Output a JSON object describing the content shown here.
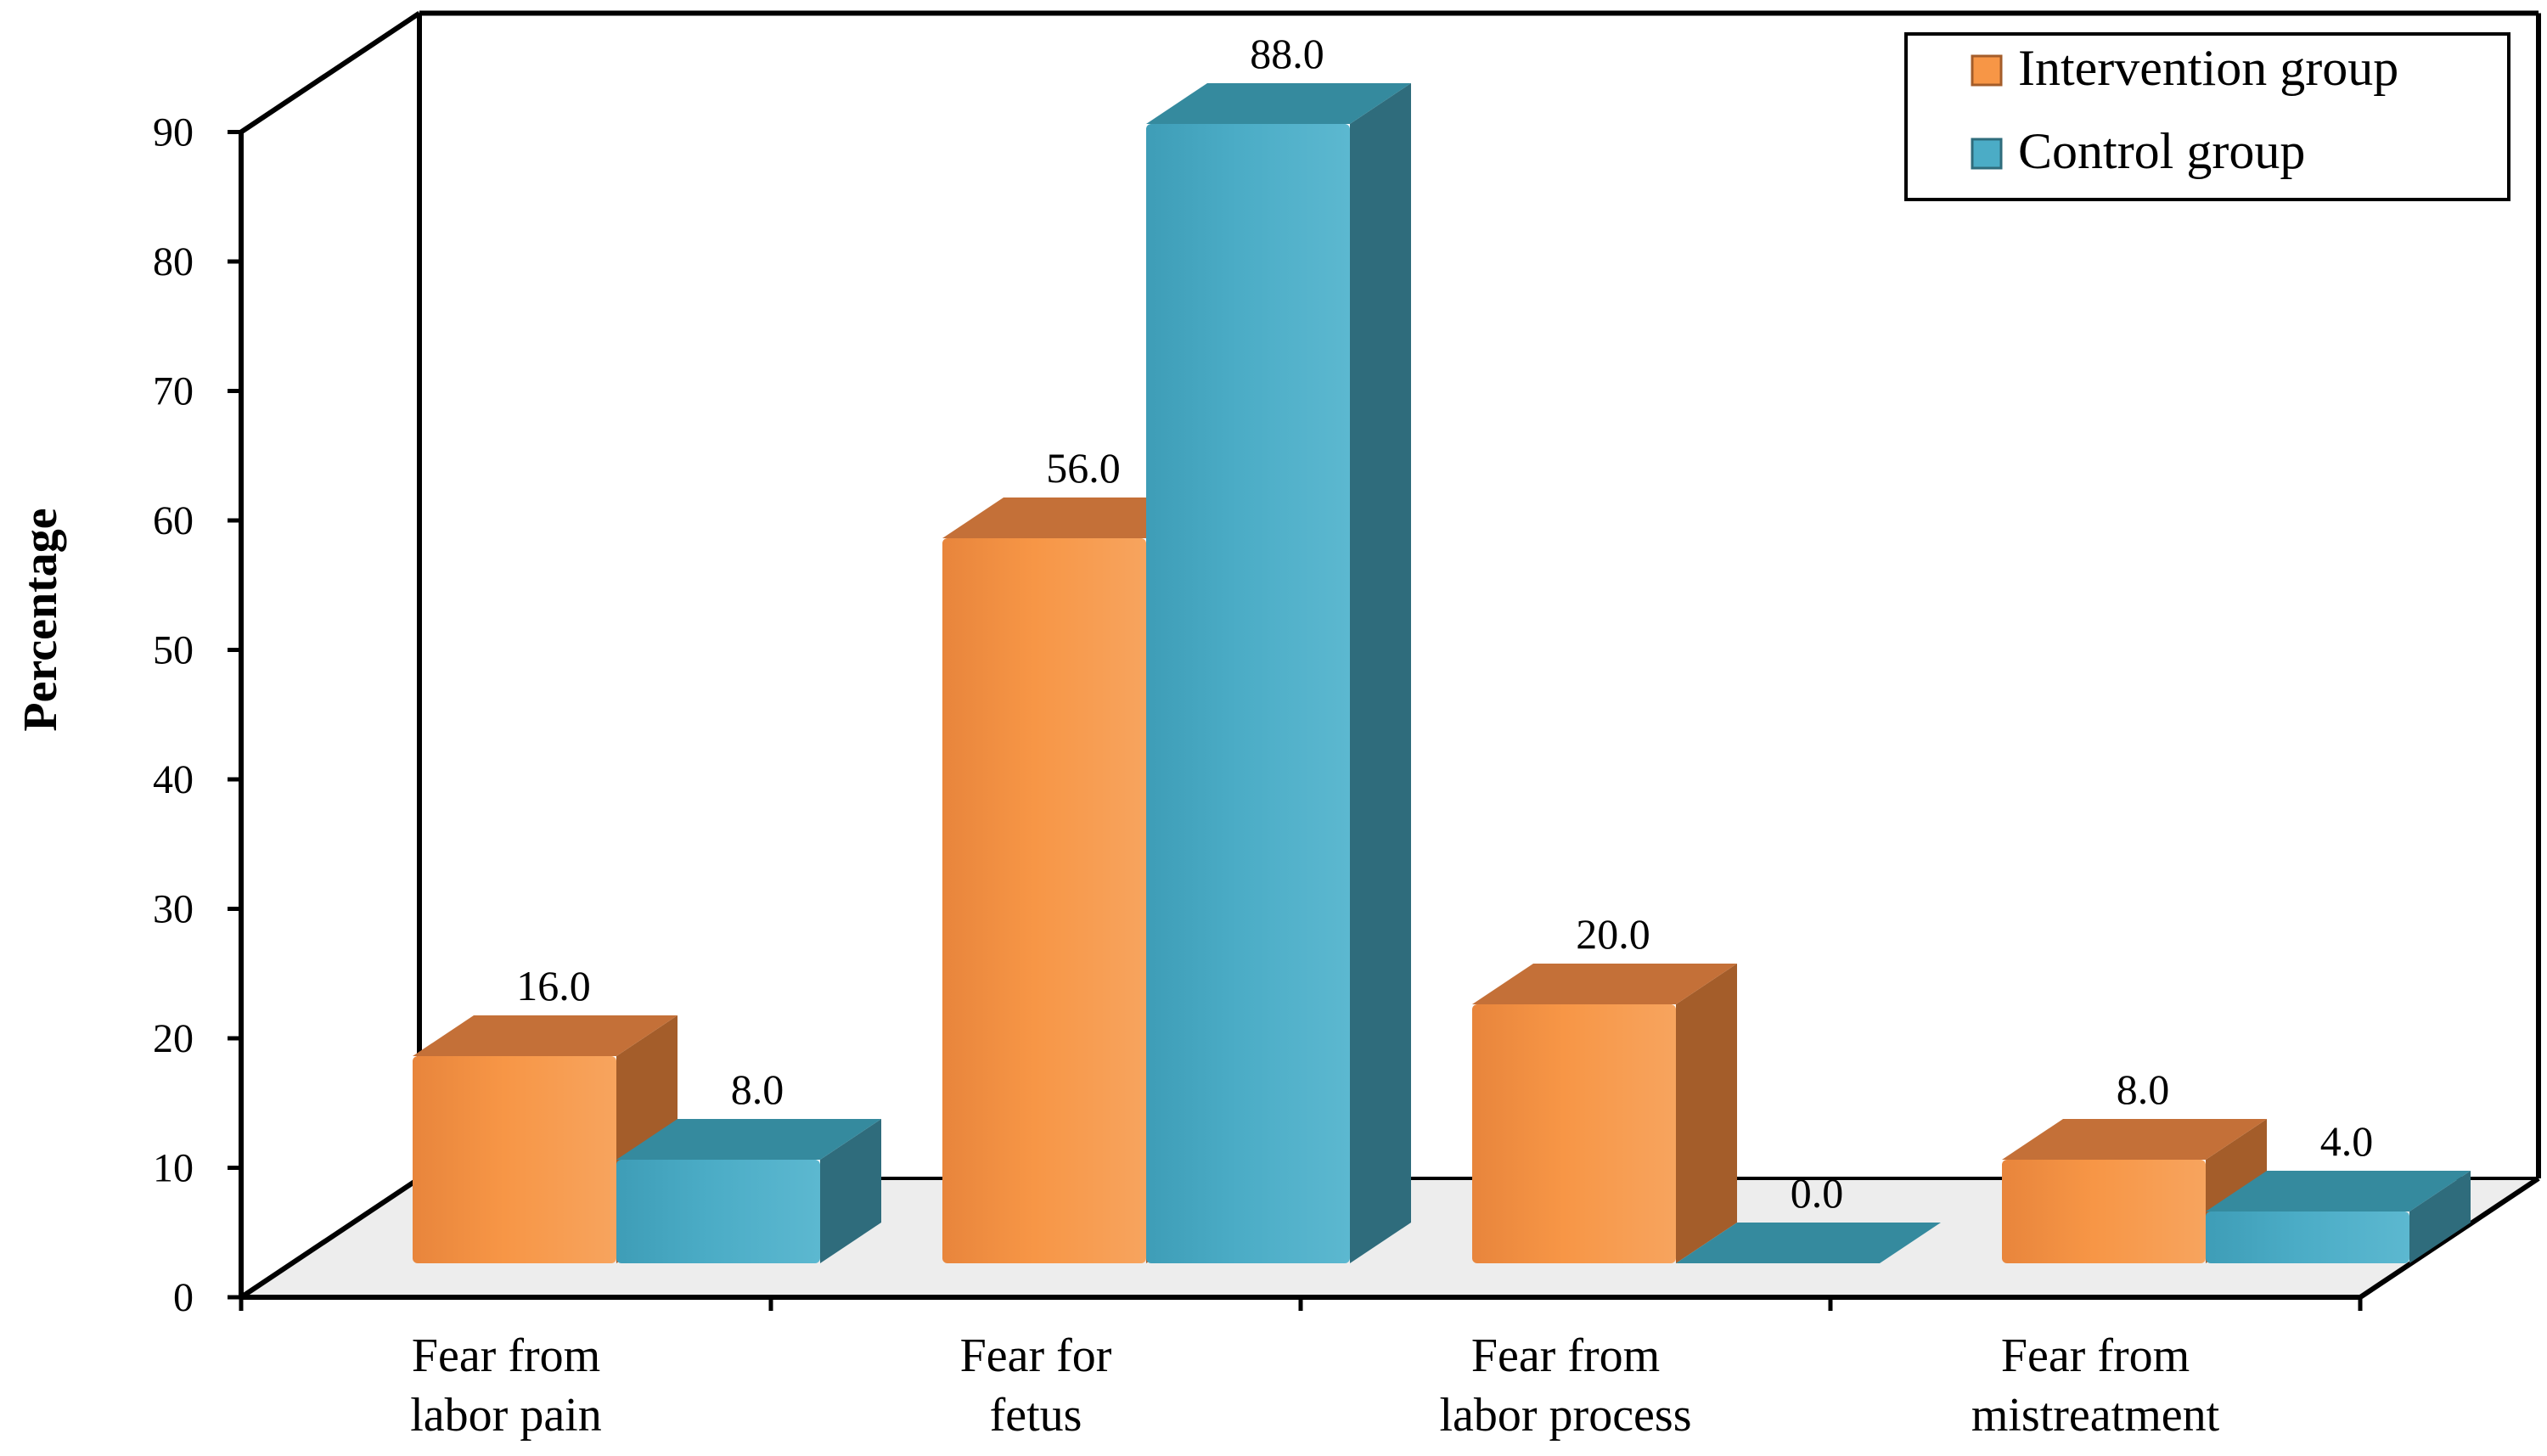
{
  "chart_data": {
    "type": "bar",
    "title": "",
    "xlabel": "",
    "ylabel": "Percentage",
    "ylim": [
      0,
      90
    ],
    "yticks": [
      "0",
      "10",
      "20",
      "30",
      "40",
      "50",
      "60",
      "70",
      "80",
      "90"
    ],
    "categories": [
      [
        "Fear from",
        "labor pain"
      ],
      [
        "Fear for",
        "fetus"
      ],
      [
        "Fear from",
        "labor process"
      ],
      [
        "Fear from",
        "mistreatment"
      ]
    ],
    "series": [
      {
        "name": "Intervention group",
        "values": [
          16.0,
          56.0,
          20.0,
          8.0
        ],
        "labels": [
          "16.0",
          "56.0",
          "20.0",
          "8.0"
        ],
        "colors": {
          "front": "#F79646",
          "top": "#C47038",
          "side": "#A45D2A"
        }
      },
      {
        "name": "Control group",
        "values": [
          8.0,
          88.0,
          0.0,
          4.0
        ],
        "labels": [
          "8.0",
          "88.0",
          "0.0",
          "4.0"
        ],
        "colors": {
          "front": "#4BACC6",
          "top": "#358A9E",
          "side": "#2F6C7C"
        }
      }
    ],
    "legend": "top-right",
    "style": "3d-clustered-column"
  }
}
